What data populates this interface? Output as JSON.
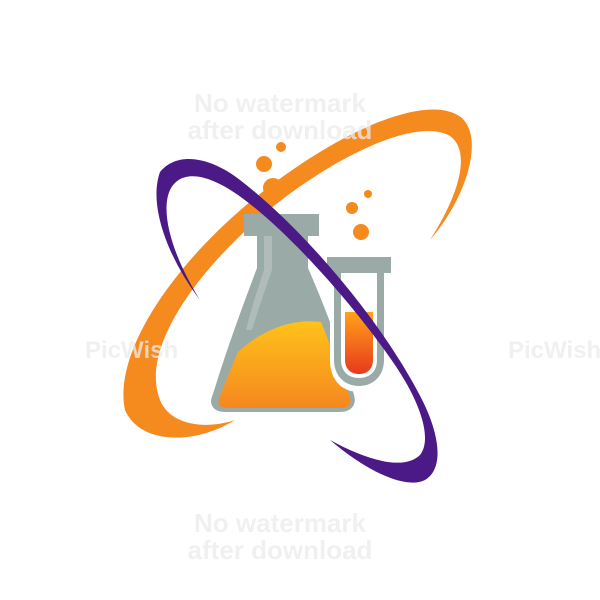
{
  "colors": {
    "orange": "#f58a1f",
    "purple": "#4b1a86",
    "flask_gray": "#9aaaa6",
    "liquid_orange": "#f7a21b",
    "liquid_yellow": "#ffc21a",
    "liquid_red": "#e8491d"
  },
  "icons": [
    "orbit-ring",
    "flask-icon",
    "test-tube-icon",
    "bubble"
  ],
  "watermark": {
    "line1": "No watermark",
    "line2": "after download",
    "brand": "PicWish"
  }
}
